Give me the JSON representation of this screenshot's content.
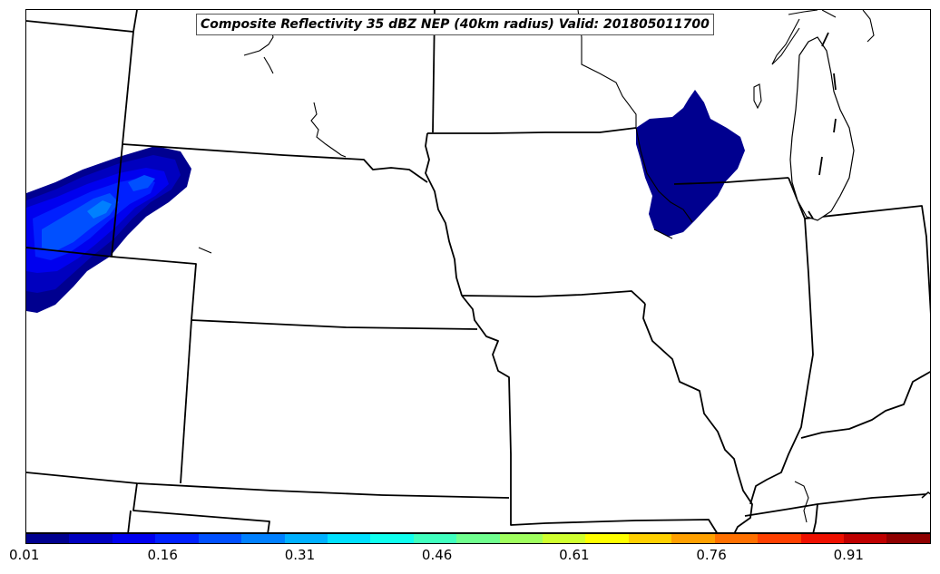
{
  "title": "Composite Reflectivity 35 dBZ NEP (40km radius) Valid: 201805011700",
  "colorbar": {
    "colors": [
      "#00008f",
      "#0000bf",
      "#0000ef",
      "#0020ff",
      "#0050ff",
      "#0080ff",
      "#00b0ff",
      "#00e0ff",
      "#10ffef",
      "#40ffbf",
      "#70ff8f",
      "#a0ff5f",
      "#d0ff2f",
      "#ffff00",
      "#ffd000",
      "#ffa000",
      "#ff7000",
      "#ff4000",
      "#ef1000",
      "#bf0000",
      "#8f0000"
    ],
    "tick_labels": [
      "0.01",
      "0.16",
      "0.31",
      "0.46",
      "0.61",
      "0.76",
      "0.91"
    ],
    "min": 0.01,
    "max": 1.0
  }
}
